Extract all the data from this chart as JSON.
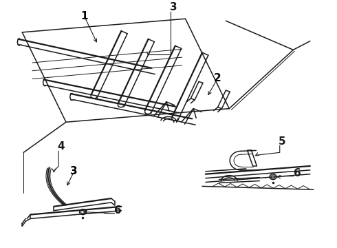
{
  "bg_color": "#ffffff",
  "line_color": "#1a1a1a",
  "label_color": "#000000",
  "label_fontsize": 11,
  "leader_lw": 0.8,
  "main_lw": 1.1,
  "thin_lw": 0.7,
  "thick_lw": 1.6
}
